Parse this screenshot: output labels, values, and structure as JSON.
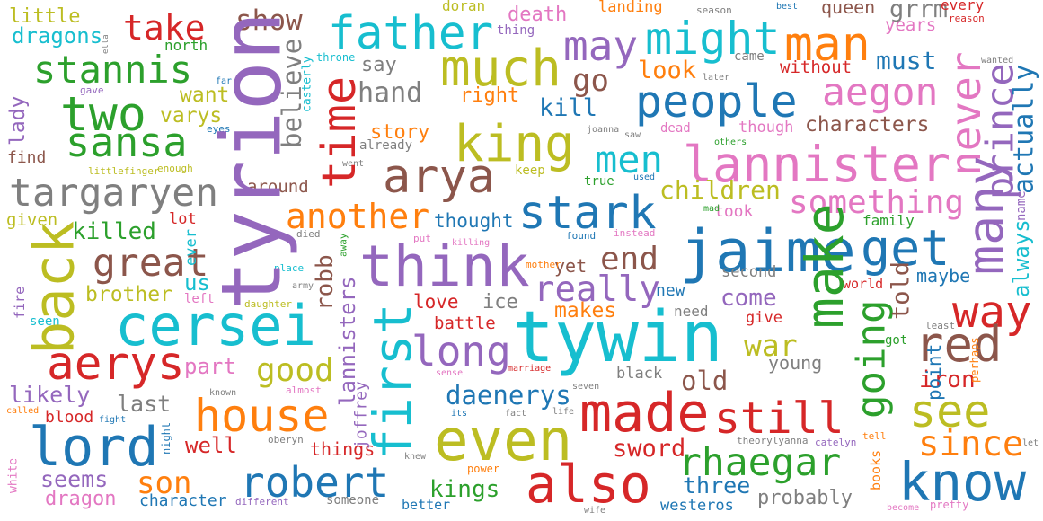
{
  "words": [
    {
      "text": "little",
      "color": "#bcbd22"
    },
    {
      "text": "take",
      "color": "#d62728"
    },
    {
      "text": "show",
      "color": "#8c564b"
    },
    {
      "text": "father",
      "color": "#17becf"
    },
    {
      "text": "doran",
      "color": "#bcbd22"
    },
    {
      "text": "death",
      "color": "#e377c2"
    },
    {
      "text": "landing",
      "color": "#ff7f0e"
    },
    {
      "text": "season",
      "color": "#7f7f7f"
    },
    {
      "text": "best",
      "color": "#1f77b4"
    },
    {
      "text": "queen",
      "color": "#8c564b"
    },
    {
      "text": "grrm",
      "color": "#7f7f7f"
    },
    {
      "text": "every",
      "color": "#d62728"
    },
    {
      "text": "reason",
      "color": "#d62728"
    },
    {
      "text": "years",
      "color": "#e377c2"
    },
    {
      "text": "wanted",
      "color": "#7f7f7f"
    },
    {
      "text": "might",
      "color": "#17becf"
    },
    {
      "text": "man",
      "color": "#ff7f0e"
    },
    {
      "text": "dragons",
      "color": "#17becf"
    },
    {
      "text": "thing",
      "color": "#9467bd"
    },
    {
      "text": "stannis",
      "color": "#2ca02c"
    },
    {
      "text": "north",
      "color": "#2ca02c"
    },
    {
      "text": "throne",
      "color": "#17becf"
    },
    {
      "text": "much",
      "color": "#bcbd22"
    },
    {
      "text": "may",
      "color": "#9467bd"
    },
    {
      "text": "go",
      "color": "#8c564b"
    },
    {
      "text": "say",
      "color": "#7f7f7f"
    },
    {
      "text": "must",
      "color": "#1f77b4"
    },
    {
      "text": "look",
      "color": "#ff7f0e"
    },
    {
      "text": "came",
      "color": "#7f7f7f"
    },
    {
      "text": "later",
      "color": "#7f7f7f"
    },
    {
      "text": "without",
      "color": "#d62728"
    },
    {
      "text": "two",
      "color": "#2ca02c"
    },
    {
      "text": "want",
      "color": "#bcbd22"
    },
    {
      "text": "hand",
      "color": "#7f7f7f"
    },
    {
      "text": "right",
      "color": "#ff7f0e"
    },
    {
      "text": "people",
      "color": "#1f77b4"
    },
    {
      "text": "aegon",
      "color": "#e377c2"
    },
    {
      "text": "gave",
      "color": "#9467bd"
    },
    {
      "text": "far",
      "color": "#1f77b4"
    },
    {
      "text": "varys",
      "color": "#bcbd22"
    },
    {
      "text": "kill",
      "color": "#1f77b4"
    },
    {
      "text": "eyes",
      "color": "#1f77b4"
    },
    {
      "text": "sansa",
      "color": "#2ca02c"
    },
    {
      "text": "story",
      "color": "#ff7f0e"
    },
    {
      "text": "already",
      "color": "#7f7f7f"
    },
    {
      "text": "king",
      "color": "#bcbd22"
    },
    {
      "text": "joanna",
      "color": "#7f7f7f"
    },
    {
      "text": "saw",
      "color": "#7f7f7f"
    },
    {
      "text": "dead",
      "color": "#e377c2"
    },
    {
      "text": "though",
      "color": "#e377c2"
    },
    {
      "text": "characters",
      "color": "#8c564b"
    },
    {
      "text": "others",
      "color": "#2ca02c"
    },
    {
      "text": "arya",
      "color": "#8c564b"
    },
    {
      "text": "men",
      "color": "#17becf"
    },
    {
      "text": "lannister",
      "color": "#e377c2"
    },
    {
      "text": "find",
      "color": "#8c564b"
    },
    {
      "text": "enough",
      "color": "#bcbd22"
    },
    {
      "text": "littlefinger",
      "color": "#bcbd22"
    },
    {
      "text": "keep",
      "color": "#bcbd22"
    },
    {
      "text": "went",
      "color": "#7f7f7f"
    },
    {
      "text": "used",
      "color": "#1f77b4"
    },
    {
      "text": "true",
      "color": "#2ca02c"
    },
    {
      "text": "targaryen",
      "color": "#7f7f7f"
    },
    {
      "text": "around",
      "color": "#8c564b"
    },
    {
      "text": "something",
      "color": "#e377c2"
    },
    {
      "text": "children",
      "color": "#bcbd22"
    },
    {
      "text": "stark",
      "color": "#1f77b4"
    },
    {
      "text": "another",
      "color": "#ff7f0e"
    },
    {
      "text": "took",
      "color": "#e377c2"
    },
    {
      "text": "mad",
      "color": "#2ca02c"
    },
    {
      "text": "thought",
      "color": "#1f77b4"
    },
    {
      "text": "given",
      "color": "#bcbd22"
    },
    {
      "text": "lot",
      "color": "#d62728"
    },
    {
      "text": "killed",
      "color": "#2ca02c"
    },
    {
      "text": "family",
      "color": "#2ca02c"
    },
    {
      "text": "died",
      "color": "#7f7f7f"
    },
    {
      "text": "put",
      "color": "#e377c2"
    },
    {
      "text": "killing",
      "color": "#e377c2"
    },
    {
      "text": "found",
      "color": "#1f77b4"
    },
    {
      "text": "instead",
      "color": "#e377c2"
    },
    {
      "text": "get",
      "color": "#1f77b4"
    },
    {
      "text": "jaime",
      "color": "#1f77b4"
    },
    {
      "text": "think",
      "color": "#9467bd"
    },
    {
      "text": "great",
      "color": "#8c564b"
    },
    {
      "text": "end",
      "color": "#8c564b"
    },
    {
      "text": "yet",
      "color": "#8c564b"
    },
    {
      "text": "mother",
      "color": "#ff7f0e"
    },
    {
      "text": "place",
      "color": "#17becf"
    },
    {
      "text": "army",
      "color": "#7f7f7f"
    },
    {
      "text": "second",
      "color": "#7f7f7f"
    },
    {
      "text": "us",
      "color": "#17becf"
    },
    {
      "text": "brother",
      "color": "#bcbd22"
    },
    {
      "text": "left",
      "color": "#e377c2"
    },
    {
      "text": "daughter",
      "color": "#bcbd22"
    },
    {
      "text": "really",
      "color": "#9467bd"
    },
    {
      "text": "maybe",
      "color": "#1f77b4"
    },
    {
      "text": "world",
      "color": "#d62728"
    },
    {
      "text": "new",
      "color": "#1f77b4"
    },
    {
      "text": "come",
      "color": "#9467bd"
    },
    {
      "text": "love",
      "color": "#d62728"
    },
    {
      "text": "ice",
      "color": "#7f7f7f"
    },
    {
      "text": "makes",
      "color": "#ff7f0e"
    },
    {
      "text": "need",
      "color": "#7f7f7f"
    },
    {
      "text": "way",
      "color": "#d62728"
    },
    {
      "text": "cersei",
      "color": "#17becf"
    },
    {
      "text": "give",
      "color": "#d62728"
    },
    {
      "text": "battle",
      "color": "#d62728"
    },
    {
      "text": "seen",
      "color": "#17becf"
    },
    {
      "text": "least",
      "color": "#7f7f7f"
    },
    {
      "text": "got",
      "color": "#2ca02c"
    },
    {
      "text": "tywin",
      "color": "#17becf"
    },
    {
      "text": "red",
      "color": "#8c564b"
    },
    {
      "text": "long",
      "color": "#9467bd"
    },
    {
      "text": "war",
      "color": "#bcbd22"
    },
    {
      "text": "aerys",
      "color": "#d62728"
    },
    {
      "text": "part",
      "color": "#e377c2"
    },
    {
      "text": "good",
      "color": "#bcbd22"
    },
    {
      "text": "young",
      "color": "#7f7f7f"
    },
    {
      "text": "black",
      "color": "#7f7f7f"
    },
    {
      "text": "sense",
      "color": "#e377c2"
    },
    {
      "text": "marriage",
      "color": "#d62728"
    },
    {
      "text": "seven",
      "color": "#7f7f7f"
    },
    {
      "text": "old",
      "color": "#8c564b"
    },
    {
      "text": "iron",
      "color": "#d62728"
    },
    {
      "text": "likely",
      "color": "#9467bd"
    },
    {
      "text": "last",
      "color": "#7f7f7f"
    },
    {
      "text": "almost",
      "color": "#e377c2"
    },
    {
      "text": "known",
      "color": "#7f7f7f"
    },
    {
      "text": "daenerys",
      "color": "#1f77b4"
    },
    {
      "text": "house",
      "color": "#ff7f0e"
    },
    {
      "text": "made",
      "color": "#d62728"
    },
    {
      "text": "still",
      "color": "#d62728"
    },
    {
      "text": "see",
      "color": "#bcbd22"
    },
    {
      "text": "called",
      "color": "#ff7f0e"
    },
    {
      "text": "blood",
      "color": "#d62728"
    },
    {
      "text": "fight",
      "color": "#1f77b4"
    },
    {
      "text": "its",
      "color": "#1f77b4"
    },
    {
      "text": "fact",
      "color": "#7f7f7f"
    },
    {
      "text": "life",
      "color": "#7f7f7f"
    },
    {
      "text": "even",
      "color": "#bcbd22"
    },
    {
      "text": "lord",
      "color": "#1f77b4"
    },
    {
      "text": "since",
      "color": "#ff7f0e"
    },
    {
      "text": "well",
      "color": "#d62728"
    },
    {
      "text": "oberyn",
      "color": "#7f7f7f"
    },
    {
      "text": "theorylyanna",
      "color": "#7f7f7f"
    },
    {
      "text": "catelyn",
      "color": "#9467bd"
    },
    {
      "text": "tell",
      "color": "#ff7f0e"
    },
    {
      "text": "things",
      "color": "#d62728"
    },
    {
      "text": "let",
      "color": "#7f7f7f"
    },
    {
      "text": "sword",
      "color": "#d62728"
    },
    {
      "text": "rhaegar",
      "color": "#2ca02c"
    },
    {
      "text": "knew",
      "color": "#7f7f7f"
    },
    {
      "text": "seems",
      "color": "#9467bd"
    },
    {
      "text": "son",
      "color": "#ff7f0e"
    },
    {
      "text": "robert",
      "color": "#1f77b4"
    },
    {
      "text": "power",
      "color": "#ff7f0e"
    },
    {
      "text": "also",
      "color": "#d62728"
    },
    {
      "text": "know",
      "color": "#1f77b4"
    },
    {
      "text": "three",
      "color": "#1f77b4"
    },
    {
      "text": "kings",
      "color": "#2ca02c"
    },
    {
      "text": "probably",
      "color": "#7f7f7f"
    },
    {
      "text": "dragon",
      "color": "#e377c2"
    },
    {
      "text": "character",
      "color": "#1f77b4"
    },
    {
      "text": "different",
      "color": "#9467bd"
    },
    {
      "text": "someone",
      "color": "#7f7f7f"
    },
    {
      "text": "better",
      "color": "#1f77b4"
    },
    {
      "text": "wife",
      "color": "#7f7f7f"
    },
    {
      "text": "westeros",
      "color": "#1f77b4"
    },
    {
      "text": "become",
      "color": "#e377c2"
    },
    {
      "text": "pretty",
      "color": "#e377c2"
    },
    {
      "text": "tyrion",
      "color": "#9467bd"
    },
    {
      "text": "time",
      "color": "#d62728"
    },
    {
      "text": "believe",
      "color": "#7f7f7f"
    },
    {
      "text": "casterly",
      "color": "#17becf"
    },
    {
      "text": "lady",
      "color": "#9467bd"
    },
    {
      "text": "back",
      "color": "#bcbd22"
    },
    {
      "text": "fire",
      "color": "#9467bd"
    },
    {
      "text": "ever",
      "color": "#17becf"
    },
    {
      "text": "robb",
      "color": "#8c564b"
    },
    {
      "text": "away",
      "color": "#2ca02c"
    },
    {
      "text": "lannisters",
      "color": "#9467bd"
    },
    {
      "text": "joffrey",
      "color": "#9467bd"
    },
    {
      "text": "first",
      "color": "#17becf"
    },
    {
      "text": "night",
      "color": "#1f77b4"
    },
    {
      "text": "white",
      "color": "#e377c2"
    },
    {
      "text": "make",
      "color": "#2ca02c"
    },
    {
      "text": "going",
      "color": "#2ca02c"
    },
    {
      "text": "told",
      "color": "#8c564b"
    },
    {
      "text": "point",
      "color": "#1f77b4"
    },
    {
      "text": "perhaps",
      "color": "#ff7f0e"
    },
    {
      "text": "never",
      "color": "#e377c2"
    },
    {
      "text": "many",
      "color": "#9467bd"
    },
    {
      "text": "prince",
      "color": "#9467bd"
    },
    {
      "text": "actually",
      "color": "#1f77b4"
    },
    {
      "text": "always",
      "color": "#17becf"
    },
    {
      "text": "name",
      "color": "#9467bd"
    },
    {
      "text": "books",
      "color": "#ff7f0e"
    },
    {
      "text": "ella",
      "color": "#7f7f7f"
    }
  ]
}
